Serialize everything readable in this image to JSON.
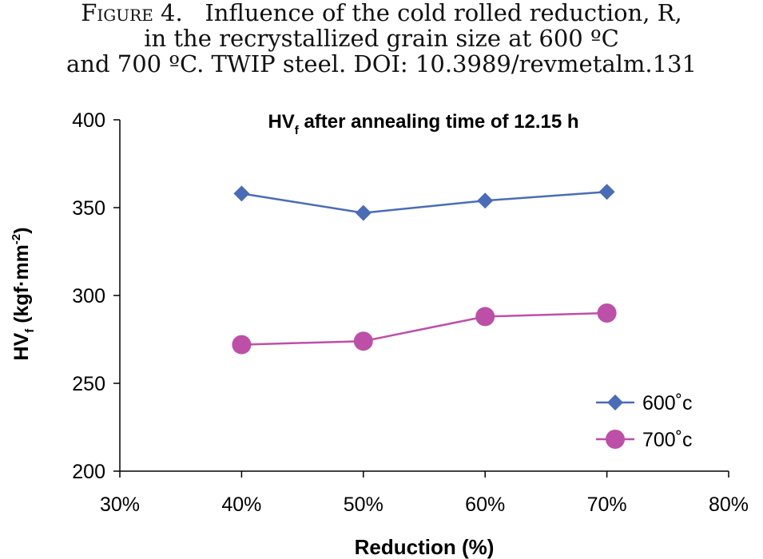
{
  "caption": {
    "figure_label": "Figure 4.",
    "lines": [
      "Influence of the cold rolled reduction, R,",
      "in the recrystallized grain size at 600 ºC",
      "and 700 ºC. TWIP steel.  DOI: 10.3989/revmetalm.131"
    ]
  },
  "chart_data": {
    "type": "line",
    "title": "HV",
    "title_sub": "f",
    "title_rest": " after annealing time of 12.15 h",
    "xlabel": "Reduction (%)",
    "ylabel_main": "HV",
    "ylabel_sub": "f",
    "ylabel_unit_pre": "(kgf·mm",
    "ylabel_unit_sup": "-2",
    "ylabel_unit_post": ")",
    "x_ticks": [
      "30%",
      "40%",
      "50%",
      "60%",
      "70%",
      "80%"
    ],
    "x_tick_values": [
      30,
      40,
      50,
      60,
      70,
      80
    ],
    "y_ticks": [
      "200",
      "250",
      "300",
      "350",
      "400"
    ],
    "y_tick_values": [
      200,
      250,
      300,
      350,
      400
    ],
    "xlim": [
      30,
      80
    ],
    "ylim": [
      200,
      400
    ],
    "grid": false,
    "legend_position": "bottom-right",
    "series": [
      {
        "name": "600˚c",
        "marker": "diamond",
        "color": "#4a6cb8",
        "x": [
          40,
          50,
          60,
          70
        ],
        "y": [
          358,
          347,
          354,
          359
        ]
      },
      {
        "name": "700˚c",
        "marker": "circle",
        "color": "#bd4fa8",
        "x": [
          40,
          50,
          60,
          70
        ],
        "y": [
          272,
          274,
          288,
          290
        ]
      }
    ]
  }
}
